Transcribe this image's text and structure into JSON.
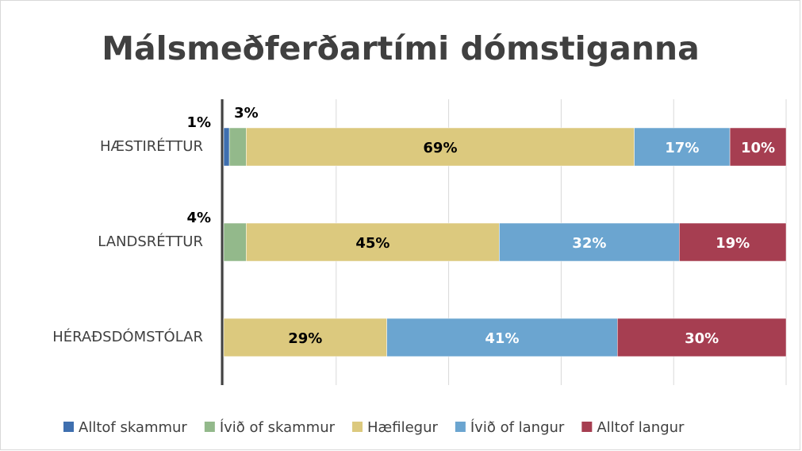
{
  "chart_data": {
    "type": "stacked_bar_horizontal",
    "title": "Málsmeðferðartími dómstiganna",
    "categories": [
      "HÆSTIRÉTTUR",
      "LANDSRÉTTUR",
      "HÉRAÐSDÓMSTÓLAR"
    ],
    "series": [
      {
        "name": "Alltof skammur",
        "color": "#3f6faf",
        "label_color": "#000000",
        "values": [
          1,
          0,
          0
        ],
        "value_labels": [
          "1%",
          null,
          null
        ]
      },
      {
        "name": "Ívið of skammur",
        "color": "#93b98b",
        "label_color": "#000000",
        "values": [
          3,
          4,
          0
        ],
        "value_labels": [
          "3%",
          "4%",
          null
        ]
      },
      {
        "name": "Hæfilegur",
        "color": "#dcc97e",
        "label_color": "#000000",
        "values": [
          69,
          45,
          29
        ],
        "value_labels": [
          "69%",
          "45%",
          "29%"
        ]
      },
      {
        "name": "Ívið of langur",
        "color": "#6ba5d0",
        "label_color": "#ffffff",
        "values": [
          17,
          32,
          41
        ],
        "value_labels": [
          "17%",
          "32%",
          "41%"
        ]
      },
      {
        "name": "Alltof langur",
        "color": "#a63e51",
        "label_color": "#ffffff",
        "values": [
          10,
          19,
          30
        ],
        "value_labels": [
          "10%",
          "19%",
          "30%"
        ]
      }
    ],
    "xlim": [
      0,
      100
    ],
    "xticks": [
      0,
      20,
      40,
      60,
      80,
      100
    ],
    "grid": true,
    "legend": "bottom"
  }
}
